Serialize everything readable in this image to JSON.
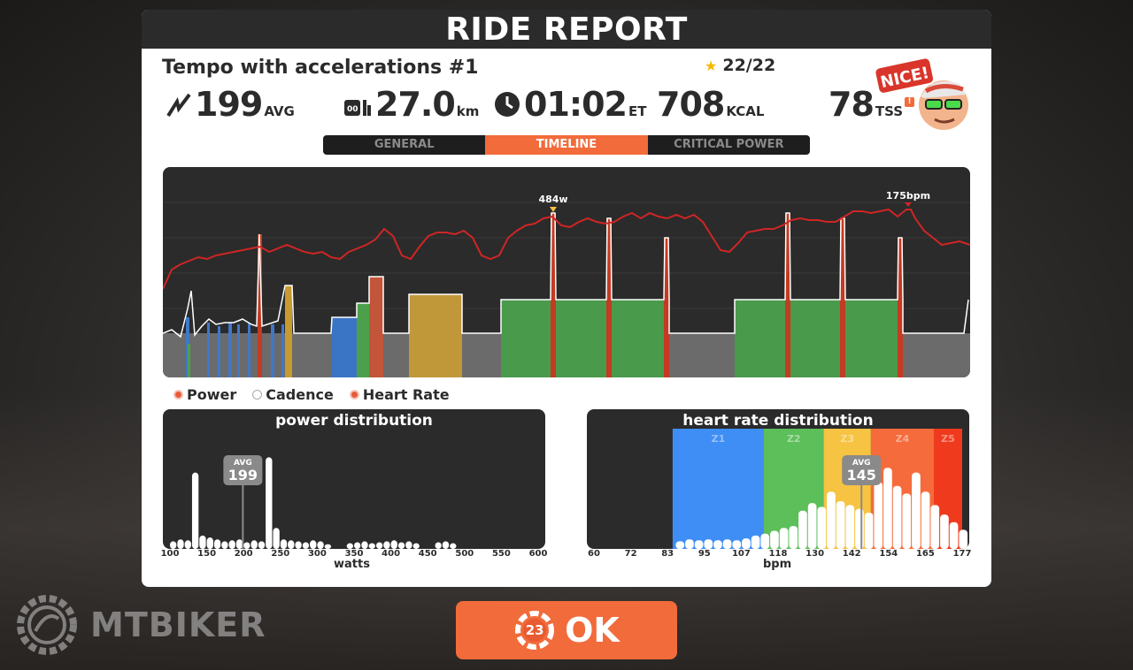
{
  "header": {
    "title": "RIDE REPORT"
  },
  "ride": {
    "name": "Tempo with accelerations #1",
    "stars": "22/22"
  },
  "stats": {
    "power": {
      "value": "199",
      "unit": "AVG",
      "icon": "power-bolt-icon"
    },
    "distance": {
      "value": "27.0",
      "unit": "km",
      "icon": "odometer-icon"
    },
    "time": {
      "value": "01:02",
      "unit": "ET",
      "icon": "clock-icon"
    },
    "calories": {
      "value": "708",
      "unit": "KCAL"
    },
    "tss": {
      "value": "78",
      "unit": "TSS",
      "warn": "!"
    }
  },
  "avatar": {
    "badge": "NICE!"
  },
  "tabs": [
    {
      "label": "GENERAL",
      "active": false
    },
    {
      "label": "TIMELINE",
      "active": true
    },
    {
      "label": "CRITICAL POWER",
      "active": false
    }
  ],
  "timeline": {
    "peak_power_label": "484w",
    "peak_hr_label": "175bpm"
  },
  "legend": {
    "power": "Power",
    "cadence": "Cadence",
    "heart_rate": "Heart Rate"
  },
  "chart_data": [
    {
      "type": "bar",
      "title": "power distribution",
      "xlabel": "watts",
      "x_ticks": [
        "100",
        "150",
        "200",
        "250",
        "300",
        "350",
        "400",
        "450",
        "500",
        "550",
        "600"
      ],
      "xlim": [
        100,
        600
      ],
      "avg_label": "AVG",
      "avg_value": "199",
      "avg": 199,
      "x": [
        100,
        110,
        120,
        130,
        140,
        150,
        160,
        170,
        180,
        190,
        200,
        210,
        220,
        230,
        240,
        250,
        260,
        270,
        280,
        290,
        300,
        310,
        320,
        330,
        340,
        350,
        360,
        370,
        380,
        390,
        400,
        410,
        420,
        430,
        440,
        450,
        460,
        470,
        480,
        490
      ],
      "values": [
        8,
        10,
        9,
        80,
        14,
        12,
        10,
        8,
        9,
        10,
        7,
        9,
        8,
        96,
        22,
        10,
        9,
        8,
        7,
        9,
        8,
        5,
        0,
        0,
        6,
        7,
        8,
        6,
        7,
        8,
        9,
        7,
        8,
        6,
        0,
        0,
        7,
        8,
        6,
        0
      ]
    },
    {
      "type": "bar",
      "title": "heart rate distribution",
      "xlabel": "bpm",
      "x_ticks": [
        "60",
        "72",
        "83",
        "95",
        "107",
        "118",
        "130",
        "142",
        "154",
        "165",
        "177"
      ],
      "xlim": [
        60,
        177
      ],
      "zones": [
        {
          "label": "Z1",
          "from": 85,
          "to": 114,
          "color": "#3f8ef5"
        },
        {
          "label": "Z2",
          "from": 114,
          "to": 133,
          "color": "#5cbf5a"
        },
        {
          "label": "Z3",
          "from": 133,
          "to": 148,
          "color": "#f6c342"
        },
        {
          "label": "Z4",
          "from": 148,
          "to": 168,
          "color": "#f56b3b"
        },
        {
          "label": "Z5",
          "from": 168,
          "to": 177,
          "color": "#f03a1d"
        }
      ],
      "avg_label": "AVG",
      "avg_value": "145",
      "avg": 145,
      "x": [
        86,
        89,
        92,
        95,
        98,
        101,
        104,
        107,
        110,
        113,
        116,
        119,
        122,
        125,
        128,
        131,
        134,
        137,
        140,
        143,
        146,
        149,
        152,
        155,
        158,
        161,
        164,
        167,
        170,
        173,
        176
      ],
      "values": [
        8,
        10,
        9,
        10,
        9,
        10,
        9,
        11,
        14,
        16,
        19,
        22,
        24,
        40,
        48,
        44,
        60,
        50,
        46,
        42,
        38,
        70,
        85,
        66,
        58,
        80,
        60,
        46,
        36,
        28,
        20
      ]
    }
  ]
}
